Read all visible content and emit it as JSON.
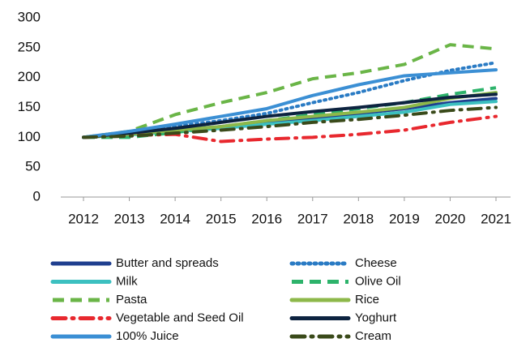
{
  "chart_data": {
    "type": "line",
    "categories": [
      "2012",
      "2013",
      "2014",
      "2015",
      "2016",
      "2017",
      "2018",
      "2019",
      "2020",
      "2021"
    ],
    "ylim": [
      0,
      300
    ],
    "yticks": [
      0,
      50,
      100,
      150,
      200,
      250,
      300
    ],
    "grid": false,
    "series": [
      {
        "name": "Butter and spreads",
        "color": "#1f3f8f",
        "style": "solid",
        "values": [
          100,
          105,
          112,
          118,
          125,
          132,
          140,
          148,
          158,
          165
        ]
      },
      {
        "name": "Cheese",
        "color": "#2a7bc4",
        "style": "dotted",
        "values": [
          100,
          108,
          118,
          128,
          140,
          158,
          175,
          195,
          212,
          225
        ]
      },
      {
        "name": "Milk",
        "color": "#3cc0c0",
        "style": "solid",
        "values": [
          100,
          104,
          110,
          115,
          122,
          128,
          135,
          142,
          155,
          160
        ]
      },
      {
        "name": "Olive Oil",
        "color": "#2db36b",
        "style": "dashed",
        "values": [
          100,
          100,
          108,
          118,
          128,
          138,
          148,
          158,
          172,
          183
        ]
      },
      {
        "name": "Pasta",
        "color": "#6ab547",
        "style": "dashed",
        "values": [
          100,
          110,
          138,
          158,
          175,
          198,
          208,
          222,
          255,
          248
        ]
      },
      {
        "name": "Rice",
        "color": "#8db84a",
        "style": "solid",
        "values": [
          100,
          105,
          112,
          118,
          128,
          135,
          142,
          150,
          165,
          175
        ]
      },
      {
        "name": "Vegetable and Seed Oil",
        "color": "#e8282e",
        "style": "dashdot",
        "values": [
          100,
          103,
          105,
          93,
          97,
          100,
          105,
          112,
          125,
          135
        ]
      },
      {
        "name": "Yoghurt",
        "color": "#0d2340",
        "style": "solid",
        "values": [
          100,
          107,
          115,
          125,
          135,
          143,
          150,
          158,
          167,
          172
        ]
      },
      {
        "name": "100% Juice",
        "color": "#3b8fd4",
        "style": "solid",
        "values": [
          100,
          110,
          122,
          135,
          148,
          170,
          188,
          203,
          208,
          213
        ]
      },
      {
        "name": "Cream",
        "color": "#3a4a1a",
        "style": "dashdot",
        "values": [
          100,
          102,
          107,
          112,
          118,
          125,
          130,
          137,
          145,
          150
        ]
      }
    ]
  }
}
